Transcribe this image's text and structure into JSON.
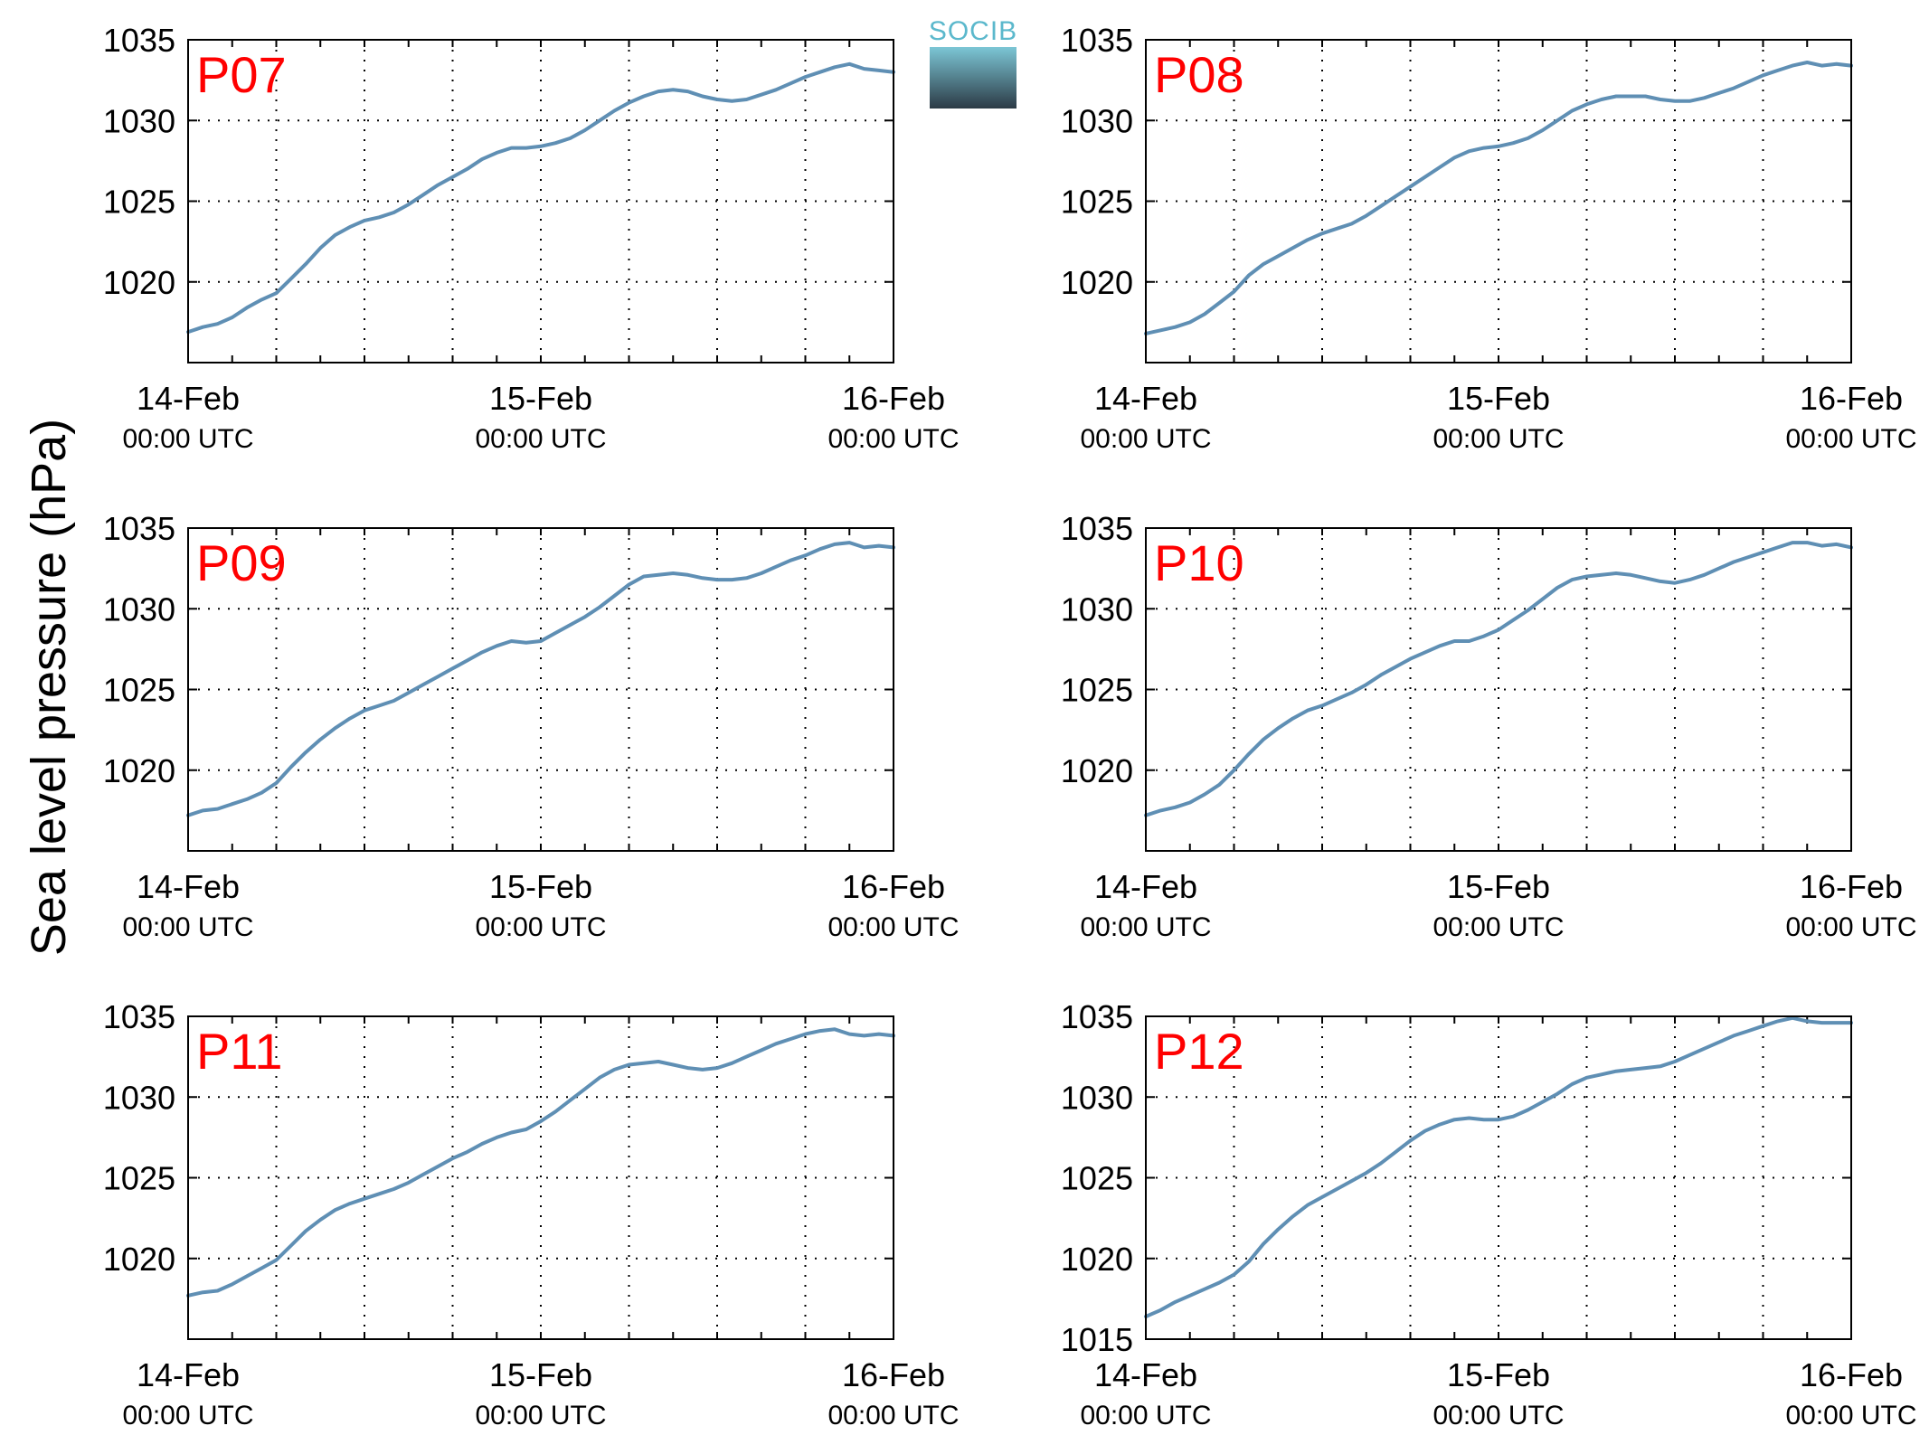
{
  "ylabel": "Sea level pressure (hPa)",
  "logo": {
    "text": "SOCIB",
    "colors": {
      "top": "#7cc6d5",
      "bottom": "#2c3b46"
    }
  },
  "colors": {
    "series": "#5f8fb4",
    "label": "#ff0000"
  },
  "chart_data": [
    {
      "type": "line",
      "label": "P07",
      "xlim": [
        0,
        48
      ],
      "ylim": [
        1015,
        1035
      ],
      "yticks": [
        1020,
        1025,
        1030,
        1035
      ],
      "x_ticks": [
        {
          "date": "14-Feb",
          "time": "00:00 UTC"
        },
        {
          "date": "15-Feb",
          "time": "00:00 UTC"
        },
        {
          "date": "16-Feb",
          "time": "00:00 UTC"
        }
      ],
      "series": [
        {
          "x": [
            0,
            1,
            2,
            3,
            4,
            5,
            6,
            7,
            8,
            9,
            10,
            11,
            12,
            13,
            14,
            15,
            16,
            17,
            18,
            19,
            20,
            21,
            22,
            23,
            24,
            25,
            26,
            27,
            28,
            29,
            30,
            31,
            32,
            33,
            34,
            35,
            36,
            37,
            38,
            39,
            40,
            41,
            42,
            43,
            44,
            45,
            46,
            47,
            48
          ],
          "values": [
            1016.9,
            1017.2,
            1017.4,
            1017.8,
            1018.4,
            1018.9,
            1019.3,
            1020.2,
            1021.1,
            1022.1,
            1022.9,
            1023.4,
            1023.8,
            1024.0,
            1024.3,
            1024.8,
            1025.4,
            1026.0,
            1026.5,
            1027.0,
            1027.6,
            1028.0,
            1028.3,
            1028.3,
            1028.4,
            1028.6,
            1028.9,
            1029.4,
            1030.0,
            1030.6,
            1031.1,
            1031.5,
            1031.8,
            1031.9,
            1031.8,
            1031.5,
            1031.3,
            1031.2,
            1031.3,
            1031.6,
            1031.9,
            1032.3,
            1032.7,
            1033.0,
            1033.3,
            1033.5,
            1033.2,
            1033.1,
            1033.0
          ]
        }
      ]
    },
    {
      "type": "line",
      "label": "P08",
      "xlim": [
        0,
        48
      ],
      "ylim": [
        1015,
        1035
      ],
      "yticks": [
        1020,
        1025,
        1030,
        1035
      ],
      "x_ticks": [
        {
          "date": "14-Feb",
          "time": "00:00 UTC"
        },
        {
          "date": "15-Feb",
          "time": "00:00 UTC"
        },
        {
          "date": "16-Feb",
          "time": "00:00 UTC"
        }
      ],
      "series": [
        {
          "x": [
            0,
            1,
            2,
            3,
            4,
            5,
            6,
            7,
            8,
            9,
            10,
            11,
            12,
            13,
            14,
            15,
            16,
            17,
            18,
            19,
            20,
            21,
            22,
            23,
            24,
            25,
            26,
            27,
            28,
            29,
            30,
            31,
            32,
            33,
            34,
            35,
            36,
            37,
            38,
            39,
            40,
            41,
            42,
            43,
            44,
            45,
            46,
            47,
            48
          ],
          "values": [
            1016.8,
            1017.0,
            1017.2,
            1017.5,
            1018.0,
            1018.7,
            1019.4,
            1020.4,
            1021.1,
            1021.6,
            1022.1,
            1022.6,
            1023.0,
            1023.3,
            1023.6,
            1024.1,
            1024.7,
            1025.3,
            1025.9,
            1026.5,
            1027.1,
            1027.7,
            1028.1,
            1028.3,
            1028.4,
            1028.6,
            1028.9,
            1029.4,
            1030.0,
            1030.6,
            1031.0,
            1031.3,
            1031.5,
            1031.5,
            1031.5,
            1031.3,
            1031.2,
            1031.2,
            1031.4,
            1031.7,
            1032.0,
            1032.4,
            1032.8,
            1033.1,
            1033.4,
            1033.6,
            1033.4,
            1033.5,
            1033.4
          ]
        }
      ]
    },
    {
      "type": "line",
      "label": "P09",
      "xlim": [
        0,
        48
      ],
      "ylim": [
        1015,
        1035
      ],
      "yticks": [
        1020,
        1025,
        1030,
        1035
      ],
      "x_ticks": [
        {
          "date": "14-Feb",
          "time": "00:00 UTC"
        },
        {
          "date": "15-Feb",
          "time": "00:00 UTC"
        },
        {
          "date": "16-Feb",
          "time": "00:00 UTC"
        }
      ],
      "series": [
        {
          "x": [
            0,
            1,
            2,
            3,
            4,
            5,
            6,
            7,
            8,
            9,
            10,
            11,
            12,
            13,
            14,
            15,
            16,
            17,
            18,
            19,
            20,
            21,
            22,
            23,
            24,
            25,
            26,
            27,
            28,
            29,
            30,
            31,
            32,
            33,
            34,
            35,
            36,
            37,
            38,
            39,
            40,
            41,
            42,
            43,
            44,
            45,
            46,
            47,
            48
          ],
          "values": [
            1017.2,
            1017.5,
            1017.6,
            1017.9,
            1018.2,
            1018.6,
            1019.2,
            1020.2,
            1021.1,
            1021.9,
            1022.6,
            1023.2,
            1023.7,
            1024.0,
            1024.3,
            1024.8,
            1025.3,
            1025.8,
            1026.3,
            1026.8,
            1027.3,
            1027.7,
            1028.0,
            1027.9,
            1028.0,
            1028.5,
            1029.0,
            1029.5,
            1030.1,
            1030.8,
            1031.5,
            1032.0,
            1032.1,
            1032.2,
            1032.1,
            1031.9,
            1031.8,
            1031.8,
            1031.9,
            1032.2,
            1032.6,
            1033.0,
            1033.3,
            1033.7,
            1034.0,
            1034.1,
            1033.8,
            1033.9,
            1033.8
          ]
        }
      ]
    },
    {
      "type": "line",
      "label": "P10",
      "xlim": [
        0,
        48
      ],
      "ylim": [
        1015,
        1035
      ],
      "yticks": [
        1020,
        1025,
        1030,
        1035
      ],
      "x_ticks": [
        {
          "date": "14-Feb",
          "time": "00:00 UTC"
        },
        {
          "date": "15-Feb",
          "time": "00:00 UTC"
        },
        {
          "date": "16-Feb",
          "time": "00:00 UTC"
        }
      ],
      "series": [
        {
          "x": [
            0,
            1,
            2,
            3,
            4,
            5,
            6,
            7,
            8,
            9,
            10,
            11,
            12,
            13,
            14,
            15,
            16,
            17,
            18,
            19,
            20,
            21,
            22,
            23,
            24,
            25,
            26,
            27,
            28,
            29,
            30,
            31,
            32,
            33,
            34,
            35,
            36,
            37,
            38,
            39,
            40,
            41,
            42,
            43,
            44,
            45,
            46,
            47,
            48
          ],
          "values": [
            1017.2,
            1017.5,
            1017.7,
            1018.0,
            1018.5,
            1019.1,
            1020.0,
            1021.0,
            1021.9,
            1022.6,
            1023.2,
            1023.7,
            1024.0,
            1024.4,
            1024.8,
            1025.3,
            1025.9,
            1026.4,
            1026.9,
            1027.3,
            1027.7,
            1028.0,
            1028.0,
            1028.3,
            1028.7,
            1029.3,
            1029.9,
            1030.6,
            1031.3,
            1031.8,
            1032.0,
            1032.1,
            1032.2,
            1032.1,
            1031.9,
            1031.7,
            1031.6,
            1031.8,
            1032.1,
            1032.5,
            1032.9,
            1033.2,
            1033.5,
            1033.8,
            1034.1,
            1034.1,
            1033.9,
            1034.0,
            1033.8
          ]
        }
      ]
    },
    {
      "type": "line",
      "label": "P11",
      "xlim": [
        0,
        48
      ],
      "ylim": [
        1015,
        1035
      ],
      "yticks": [
        1020,
        1025,
        1030,
        1035
      ],
      "x_ticks": [
        {
          "date": "14-Feb",
          "time": "00:00 UTC"
        },
        {
          "date": "15-Feb",
          "time": "00:00 UTC"
        },
        {
          "date": "16-Feb",
          "time": "00:00 UTC"
        }
      ],
      "series": [
        {
          "x": [
            0,
            1,
            2,
            3,
            4,
            5,
            6,
            7,
            8,
            9,
            10,
            11,
            12,
            13,
            14,
            15,
            16,
            17,
            18,
            19,
            20,
            21,
            22,
            23,
            24,
            25,
            26,
            27,
            28,
            29,
            30,
            31,
            32,
            33,
            34,
            35,
            36,
            37,
            38,
            39,
            40,
            41,
            42,
            43,
            44,
            45,
            46,
            47,
            48
          ],
          "values": [
            1017.7,
            1017.9,
            1018.0,
            1018.4,
            1018.9,
            1019.4,
            1019.9,
            1020.8,
            1021.7,
            1022.4,
            1023.0,
            1023.4,
            1023.7,
            1024.0,
            1024.3,
            1024.7,
            1025.2,
            1025.7,
            1026.2,
            1026.6,
            1027.1,
            1027.5,
            1027.8,
            1028.0,
            1028.5,
            1029.1,
            1029.8,
            1030.5,
            1031.2,
            1031.7,
            1032.0,
            1032.1,
            1032.2,
            1032.0,
            1031.8,
            1031.7,
            1031.8,
            1032.1,
            1032.5,
            1032.9,
            1033.3,
            1033.6,
            1033.9,
            1034.1,
            1034.2,
            1033.9,
            1033.8,
            1033.9,
            1033.8
          ]
        }
      ]
    },
    {
      "type": "line",
      "label": "P12",
      "xlim": [
        0,
        48
      ],
      "ylim": [
        1015,
        1035
      ],
      "yticks": [
        1015,
        1020,
        1025,
        1030,
        1035
      ],
      "x_ticks": [
        {
          "date": "14-Feb",
          "time": "00:00 UTC"
        },
        {
          "date": "15-Feb",
          "time": "00:00 UTC"
        },
        {
          "date": "16-Feb",
          "time": "00:00 UTC"
        }
      ],
      "series": [
        {
          "x": [
            0,
            1,
            2,
            3,
            4,
            5,
            6,
            7,
            8,
            9,
            10,
            11,
            12,
            13,
            14,
            15,
            16,
            17,
            18,
            19,
            20,
            21,
            22,
            23,
            24,
            25,
            26,
            27,
            28,
            29,
            30,
            31,
            32,
            33,
            34,
            35,
            36,
            37,
            38,
            39,
            40,
            41,
            42,
            43,
            44,
            45,
            46,
            47,
            48
          ],
          "values": [
            1016.4,
            1016.8,
            1017.3,
            1017.7,
            1018.1,
            1018.5,
            1019.0,
            1019.8,
            1020.9,
            1021.8,
            1022.6,
            1023.3,
            1023.8,
            1024.3,
            1024.8,
            1025.3,
            1025.9,
            1026.6,
            1027.3,
            1027.9,
            1028.3,
            1028.6,
            1028.7,
            1028.6,
            1028.6,
            1028.8,
            1029.2,
            1029.7,
            1030.2,
            1030.8,
            1031.2,
            1031.4,
            1031.6,
            1031.7,
            1031.8,
            1031.9,
            1032.2,
            1032.6,
            1033.0,
            1033.4,
            1033.8,
            1034.1,
            1034.4,
            1034.7,
            1034.9,
            1034.7,
            1034.6,
            1034.6,
            1034.6
          ]
        }
      ]
    }
  ]
}
